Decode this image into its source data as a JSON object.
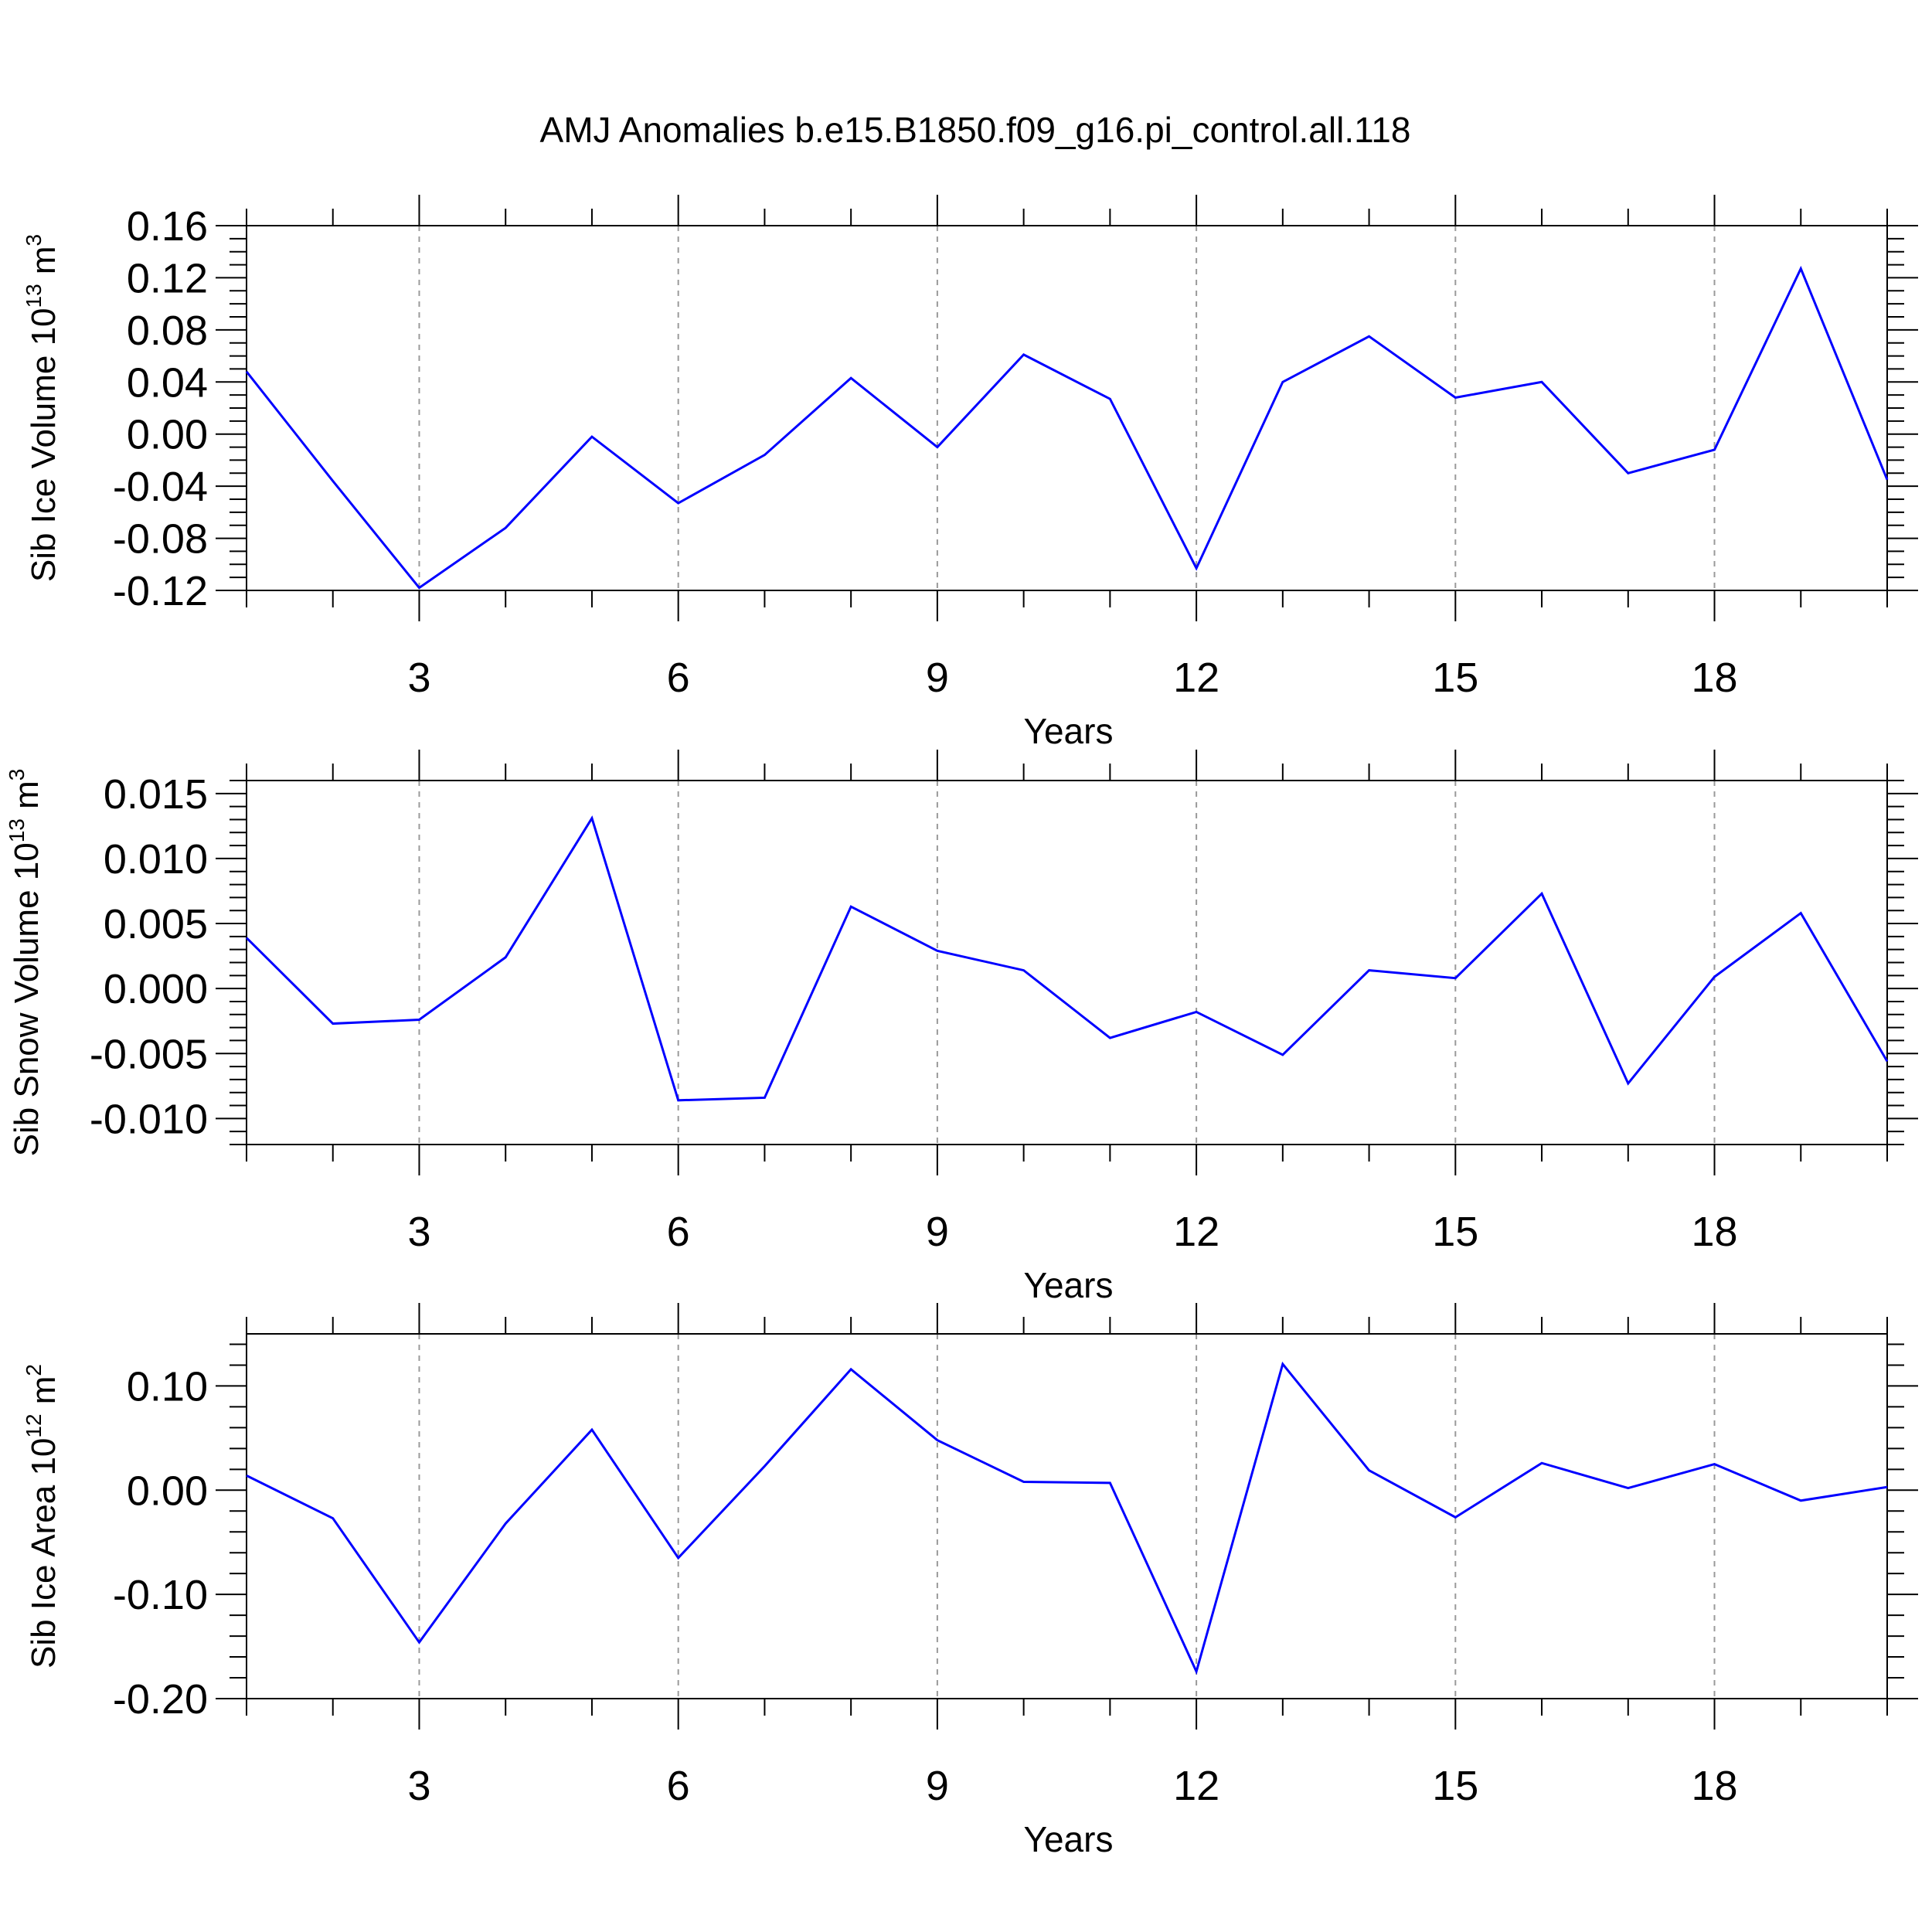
{
  "title": "AMJ Anomalies b.e15.B1850.f09_g16.pi_control.all.118",
  "line_color": "#0000ff",
  "chart_data": [
    {
      "type": "line",
      "ylabel": {
        "prefix": "Sib Ice Volume 10",
        "exp": "13",
        "unit": " m",
        "unit_exp": "3"
      },
      "xlabel": "Years",
      "xlim": [
        1,
        20
      ],
      "ylim": [
        -0.12,
        0.16
      ],
      "y_ticks": [
        0.16,
        0.12,
        0.08,
        0.04,
        0.0,
        -0.04,
        -0.08,
        -0.12
      ],
      "y_tick_labels": [
        "0.16",
        "0.12",
        "0.08",
        "0.04",
        "0.00",
        "-0.04",
        "-0.08",
        "-0.12"
      ],
      "y_minor_step": 0.01,
      "x_ticks": [
        3,
        6,
        9,
        12,
        15,
        18
      ],
      "x_tick_labels": [
        "3",
        "6",
        "9",
        "12",
        "15",
        "18"
      ],
      "x": [
        1,
        2,
        3,
        4,
        5,
        6,
        7,
        8,
        9,
        10,
        11,
        12,
        13,
        14,
        15,
        16,
        17,
        18,
        19,
        20
      ],
      "series": [
        {
          "values": [
            0.048,
            -0.036,
            -0.118,
            -0.072,
            -0.002,
            -0.053,
            -0.016,
            0.043,
            -0.01,
            0.061,
            0.027,
            -0.103,
            0.04,
            0.075,
            0.028,
            0.04,
            -0.03,
            -0.012,
            0.127,
            -0.035
          ]
        }
      ]
    },
    {
      "type": "line",
      "ylabel": {
        "prefix": "Sib Snow Volume 10",
        "exp": "13",
        "unit": " m",
        "unit_exp": "3"
      },
      "xlabel": "Years",
      "xlim": [
        1,
        20
      ],
      "ylim": [
        -0.012,
        0.016
      ],
      "y_ticks": [
        0.015,
        0.01,
        0.005,
        0.0,
        -0.005,
        -0.01
      ],
      "y_tick_labels": [
        "0.015",
        "0.010",
        "0.005",
        "0.000",
        "-0.005",
        "-0.010"
      ],
      "y_minor_step": 0.001,
      "x_ticks": [
        3,
        6,
        9,
        12,
        15,
        18
      ],
      "x_tick_labels": [
        "3",
        "6",
        "9",
        "12",
        "15",
        "18"
      ],
      "x": [
        1,
        2,
        3,
        4,
        5,
        6,
        7,
        8,
        9,
        10,
        11,
        12,
        13,
        14,
        15,
        16,
        17,
        18,
        19,
        20
      ],
      "series": [
        {
          "values": [
            0.0039,
            -0.0027,
            -0.0024,
            0.0024,
            0.0131,
            -0.0086,
            -0.0084,
            0.0063,
            0.0029,
            0.0014,
            -0.0038,
            -0.0018,
            -0.0051,
            0.0014,
            0.0008,
            0.0073,
            -0.0073,
            0.0009,
            0.0058,
            -0.0056
          ]
        }
      ]
    },
    {
      "type": "line",
      "ylabel": {
        "prefix": "Sib Ice Area 10",
        "exp": "12",
        "unit": " m",
        "unit_exp": "2"
      },
      "xlabel": "Years",
      "xlim": [
        1,
        20
      ],
      "ylim": [
        -0.2,
        0.15
      ],
      "y_ticks": [
        0.1,
        0.0,
        -0.1,
        -0.2
      ],
      "y_tick_labels": [
        "0.10",
        "0.00",
        "-0.10",
        "-0.20"
      ],
      "y_minor_step": 0.02,
      "x_ticks": [
        3,
        6,
        9,
        12,
        15,
        18
      ],
      "x_tick_labels": [
        "3",
        "6",
        "9",
        "12",
        "15",
        "18"
      ],
      "x": [
        1,
        2,
        3,
        4,
        5,
        6,
        7,
        8,
        9,
        10,
        11,
        12,
        13,
        14,
        15,
        16,
        17,
        18,
        19,
        20
      ],
      "series": [
        {
          "values": [
            0.014,
            -0.027,
            -0.146,
            -0.032,
            0.058,
            -0.065,
            0.023,
            0.116,
            0.048,
            0.008,
            0.007,
            -0.174,
            0.121,
            0.019,
            -0.026,
            0.026,
            0.002,
            0.025,
            -0.01,
            0.003
          ]
        }
      ]
    }
  ]
}
